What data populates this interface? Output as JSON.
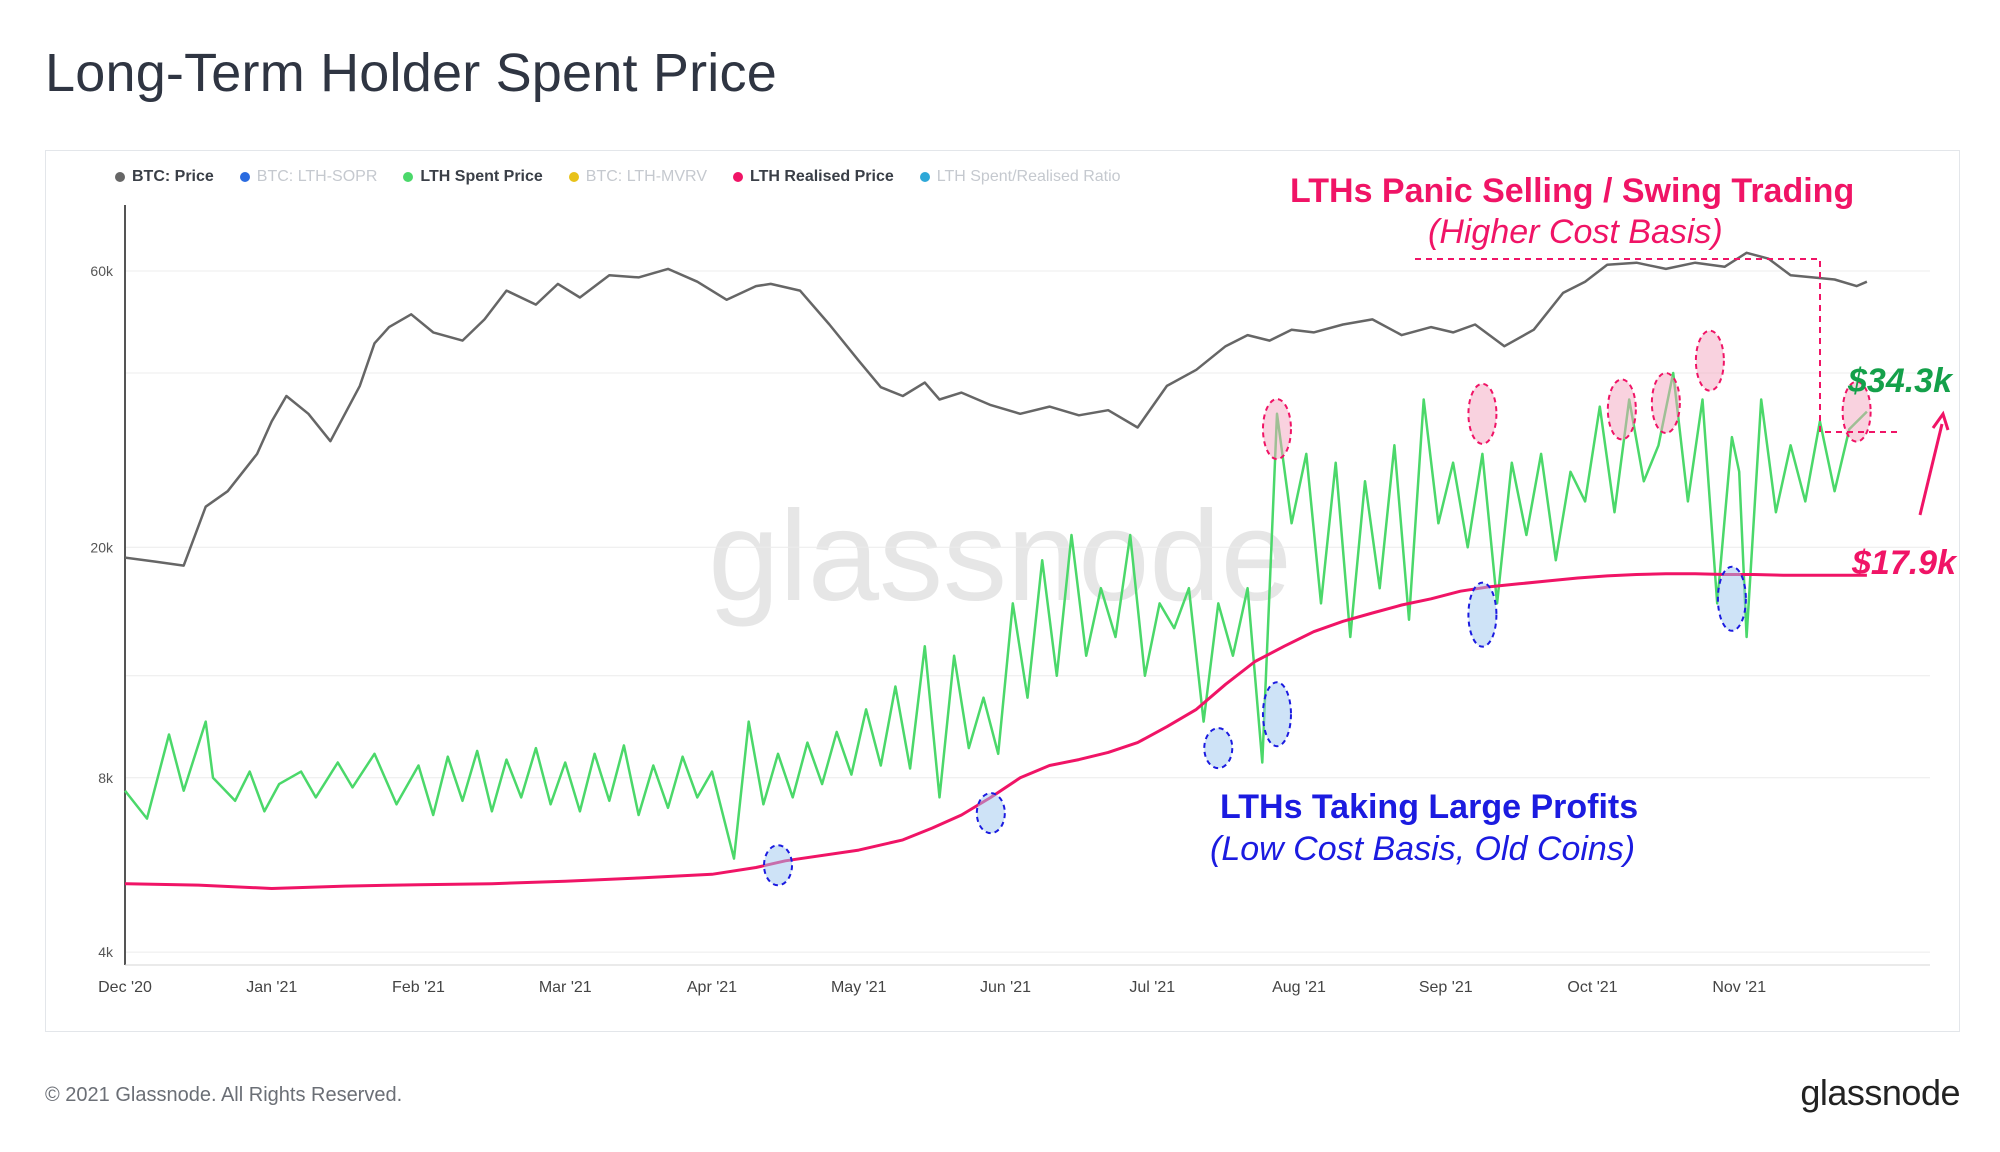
{
  "title": "Long-Term Holder Spent Price",
  "footer": {
    "copyright": "© 2021 Glassnode. All Rights Reserved.",
    "logo": "glassnode"
  },
  "watermark": "glassnode",
  "legend": [
    {
      "label": "BTC: Price",
      "color": "#666666",
      "enabled": true
    },
    {
      "label": "BTC: LTH-SOPR",
      "color": "#2a6be0",
      "enabled": false
    },
    {
      "label": "LTH Spent Price",
      "color": "#4bd86a",
      "enabled": true
    },
    {
      "label": "BTC: LTH-MVRV",
      "color": "#e8c21a",
      "enabled": false
    },
    {
      "label": "LTH Realised Price",
      "color": "#f01466",
      "enabled": true
    },
    {
      "label": "LTH Spent/Realised Ratio",
      "color": "#2ea8d8",
      "enabled": false
    }
  ],
  "annotations": {
    "panic_title": "LTHs Panic Selling / Swing Trading",
    "panic_sub": "(Higher Cost Basis)",
    "profit_title": "LTHs Taking Large Profits",
    "profit_sub": "(Low Cost Basis, Old Coins)",
    "spent_value": "$34.3k",
    "realised_value": "$17.9k"
  },
  "chart_data": {
    "type": "line",
    "yscale": "log",
    "ylim": [
      3800,
      78000
    ],
    "yticks": [
      {
        "value": 4000,
        "label": "4k"
      },
      {
        "value": 8000,
        "label": "8k"
      },
      {
        "value": 20000,
        "label": "20k"
      },
      {
        "value": 60000,
        "label": "60k"
      }
    ],
    "xlim": [
      0,
      12.3
    ],
    "xticks": [
      {
        "value": 0,
        "label": "Dec '20"
      },
      {
        "value": 1,
        "label": "Jan '21"
      },
      {
        "value": 2,
        "label": "Feb '21"
      },
      {
        "value": 3,
        "label": "Mar '21"
      },
      {
        "value": 4,
        "label": "Apr '21"
      },
      {
        "value": 5,
        "label": "May '21"
      },
      {
        "value": 6,
        "label": "Jun '21"
      },
      {
        "value": 7,
        "label": "Jul '21"
      },
      {
        "value": 8,
        "label": "Aug '21"
      },
      {
        "value": 9,
        "label": "Sep '21"
      },
      {
        "value": 10,
        "label": "Oct '21"
      },
      {
        "value": 11,
        "label": "Nov '21"
      }
    ],
    "series": [
      {
        "name": "BTC: Price",
        "color": "#666666",
        "x": [
          0,
          0.2,
          0.4,
          0.55,
          0.7,
          0.9,
          1.0,
          1.1,
          1.25,
          1.4,
          1.6,
          1.7,
          1.8,
          1.95,
          2.1,
          2.3,
          2.45,
          2.6,
          2.8,
          2.95,
          3.1,
          3.3,
          3.5,
          3.7,
          3.9,
          4.1,
          4.3,
          4.4,
          4.6,
          4.8,
          5.0,
          5.15,
          5.3,
          5.45,
          5.55,
          5.7,
          5.9,
          6.1,
          6.3,
          6.5,
          6.7,
          6.9,
          7.1,
          7.3,
          7.5,
          7.65,
          7.8,
          7.95,
          8.1,
          8.3,
          8.5,
          8.7,
          8.9,
          9.05,
          9.2,
          9.4,
          9.6,
          9.8,
          9.95,
          10.1,
          10.3,
          10.5,
          10.7,
          10.9,
          11.05,
          11.2,
          11.35,
          11.5,
          11.65,
          11.8,
          11.87
        ],
        "values": [
          19200,
          18900,
          18600,
          23500,
          25000,
          29000,
          33000,
          36500,
          34000,
          30500,
          38000,
          45000,
          48000,
          50500,
          47000,
          45500,
          49500,
          55500,
          52500,
          57000,
          54000,
          59000,
          58500,
          60500,
          57500,
          53500,
          56500,
          57000,
          55500,
          48500,
          42000,
          37800,
          36500,
          38500,
          36000,
          37000,
          35200,
          34000,
          35000,
          33800,
          34500,
          32200,
          38000,
          40500,
          44500,
          46500,
          45500,
          47500,
          47000,
          48500,
          49500,
          46500,
          48000,
          47000,
          48500,
          44500,
          47500,
          55000,
          57500,
          61500,
          62000,
          60500,
          62000,
          61000,
          64500,
          63000,
          59000,
          58500,
          58000,
          56500,
          57500
        ]
      },
      {
        "name": "LTH Spent Price",
        "color": "#4bd86a",
        "x": [
          0,
          0.15,
          0.3,
          0.4,
          0.55,
          0.6,
          0.75,
          0.85,
          0.95,
          1.05,
          1.2,
          1.3,
          1.45,
          1.55,
          1.7,
          1.85,
          2.0,
          2.1,
          2.2,
          2.3,
          2.4,
          2.5,
          2.6,
          2.7,
          2.8,
          2.9,
          3.0,
          3.1,
          3.2,
          3.3,
          3.4,
          3.5,
          3.6,
          3.7,
          3.8,
          3.9,
          4.0,
          4.15,
          4.25,
          4.35,
          4.45,
          4.55,
          4.65,
          4.75,
          4.85,
          4.95,
          5.05,
          5.15,
          5.25,
          5.35,
          5.45,
          5.55,
          5.65,
          5.75,
          5.85,
          5.95,
          6.05,
          6.15,
          6.25,
          6.35,
          6.45,
          6.55,
          6.65,
          6.75,
          6.85,
          6.95,
          7.05,
          7.15,
          7.25,
          7.35,
          7.45,
          7.55,
          7.65,
          7.75,
          7.85,
          7.95,
          8.05,
          8.15,
          8.25,
          8.35,
          8.45,
          8.55,
          8.65,
          8.75,
          8.85,
          8.95,
          9.05,
          9.15,
          9.25,
          9.35,
          9.45,
          9.55,
          9.65,
          9.75,
          9.85,
          9.95,
          10.05,
          10.15,
          10.25,
          10.35,
          10.45,
          10.55,
          10.65,
          10.75,
          10.85,
          10.95,
          11.0,
          11.05,
          11.15,
          11.25,
          11.35,
          11.45,
          11.55,
          11.65,
          11.75,
          11.87
        ],
        "values": [
          7600,
          6800,
          9500,
          7600,
          10000,
          8000,
          7300,
          8200,
          7000,
          7800,
          8200,
          7400,
          8500,
          7700,
          8800,
          7200,
          8400,
          6900,
          8700,
          7300,
          8900,
          7000,
          8600,
          7400,
          9000,
          7200,
          8500,
          7000,
          8800,
          7300,
          9100,
          6900,
          8400,
          7100,
          8700,
          7400,
          8200,
          5800,
          10000,
          7200,
          8800,
          7400,
          9200,
          7800,
          9600,
          8100,
          10500,
          8400,
          11500,
          8300,
          13500,
          7400,
          13000,
          9000,
          11000,
          8800,
          16000,
          11000,
          19000,
          12000,
          21000,
          13000,
          17000,
          14000,
          21000,
          12000,
          16000,
          14500,
          17000,
          10000,
          16000,
          13000,
          17000,
          8500,
          34000,
          22000,
          29000,
          16000,
          28000,
          14000,
          26000,
          17000,
          30000,
          15000,
          36000,
          22000,
          28000,
          20000,
          29000,
          16000,
          28000,
          21000,
          29000,
          19000,
          27000,
          24000,
          35000,
          23000,
          36000,
          26000,
          30000,
          40000,
          24000,
          36000,
          16000,
          31000,
          27000,
          14000,
          36000,
          23000,
          30000,
          24000,
          33000,
          25000,
          32000,
          34300
        ]
      },
      {
        "name": "LTH Realised Price",
        "color": "#f01466",
        "x": [
          0,
          0.5,
          1.0,
          1.5,
          2.0,
          2.5,
          3.0,
          3.5,
          4.0,
          4.3,
          4.5,
          5.0,
          5.3,
          5.5,
          5.7,
          5.9,
          6.1,
          6.3,
          6.5,
          6.7,
          6.9,
          7.1,
          7.3,
          7.5,
          7.7,
          7.9,
          8.1,
          8.3,
          8.5,
          8.7,
          8.9,
          9.1,
          9.3,
          9.5,
          9.7,
          9.9,
          10.1,
          10.3,
          10.5,
          10.7,
          10.9,
          11.1,
          11.3,
          11.5,
          11.7,
          11.87
        ],
        "values": [
          5250,
          5220,
          5150,
          5200,
          5230,
          5250,
          5300,
          5370,
          5450,
          5600,
          5750,
          6000,
          6250,
          6550,
          6900,
          7400,
          8000,
          8400,
          8600,
          8850,
          9200,
          9800,
          10500,
          11600,
          12700,
          13500,
          14300,
          14900,
          15400,
          15900,
          16300,
          16800,
          17100,
          17300,
          17500,
          17700,
          17850,
          17950,
          18000,
          18000,
          17950,
          17950,
          17900,
          17900,
          17900,
          17900
        ]
      }
    ],
    "markers": [
      {
        "kind": "low",
        "x": 4.45,
        "value": 5650
      },
      {
        "kind": "low",
        "x": 5.9,
        "value": 6950
      },
      {
        "kind": "low",
        "x": 7.45,
        "value": 9000
      },
      {
        "kind": "low",
        "x": 7.85,
        "value": 10300
      },
      {
        "kind": "low",
        "x": 9.25,
        "value": 15300
      },
      {
        "kind": "low",
        "x": 10.95,
        "value": 16300
      },
      {
        "kind": "high",
        "x": 7.85,
        "value": 32000
      },
      {
        "kind": "high",
        "x": 9.25,
        "value": 34000
      },
      {
        "kind": "high",
        "x": 10.2,
        "value": 34600
      },
      {
        "kind": "high",
        "x": 10.5,
        "value": 35500
      },
      {
        "kind": "high",
        "x": 10.8,
        "value": 42000
      },
      {
        "kind": "high",
        "x": 11.8,
        "value": 34300
      }
    ]
  }
}
